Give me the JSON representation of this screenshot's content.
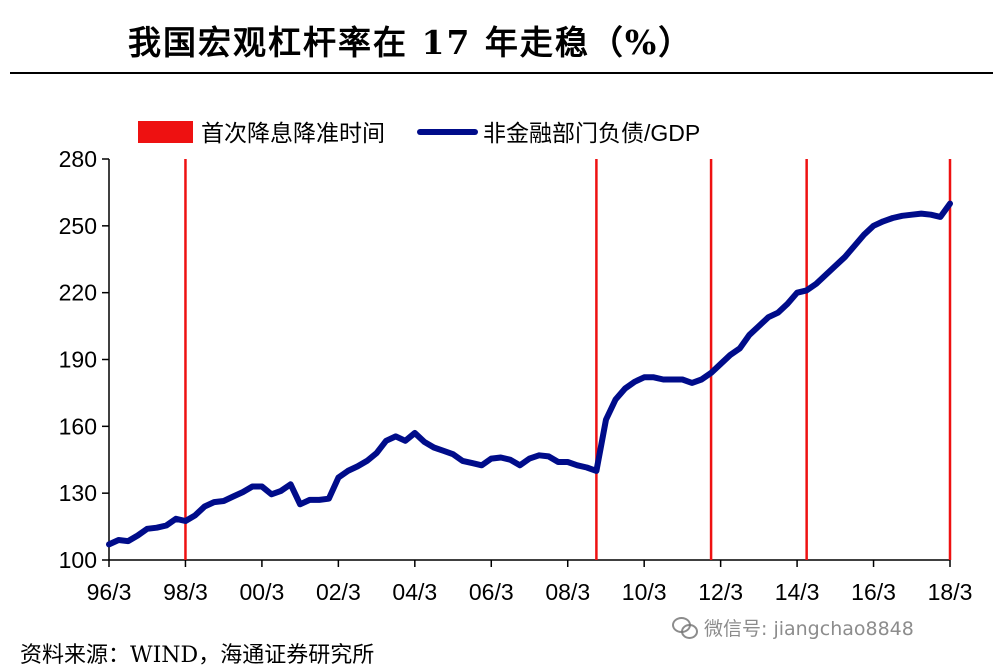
{
  "chart_data": {
    "type": "line",
    "title": "我国宏观杠杆率在 17 年走稳（%）",
    "source": "资料来源：WIND，海通证券研究所",
    "watermark": "微信号: jiangchao8848",
    "ylim": [
      100,
      280
    ],
    "yticks": [
      100,
      130,
      160,
      190,
      220,
      250,
      280
    ],
    "xlim": [
      1996.0,
      2018.0
    ],
    "xticks": [
      {
        "label": "96/3",
        "x": 1996.0
      },
      {
        "label": "98/3",
        "x": 1998.0
      },
      {
        "label": "00/3",
        "x": 2000.0
      },
      {
        "label": "02/3",
        "x": 2002.0
      },
      {
        "label": "04/3",
        "x": 2004.0
      },
      {
        "label": "06/3",
        "x": 2006.0
      },
      {
        "label": "08/3",
        "x": 2008.0
      },
      {
        "label": "10/3",
        "x": 2010.0
      },
      {
        "label": "12/3",
        "x": 2012.0
      },
      {
        "label": "14/3",
        "x": 2014.0
      },
      {
        "label": "16/3",
        "x": 2016.0
      },
      {
        "label": "18/3",
        "x": 2018.0
      }
    ],
    "legend": [
      {
        "name": "首次降息降准时间",
        "color": "#ee1111",
        "kind": "bar"
      },
      {
        "name": "非金融部门负债/GDP",
        "color": "#000c8a",
        "kind": "line"
      }
    ],
    "events": {
      "name": "首次降息降准时间",
      "color": "#ee1111",
      "x": [
        1998.0,
        2008.75,
        2011.75,
        2014.25,
        2018.0
      ]
    },
    "series": [
      {
        "name": "非金融部门负债/GDP",
        "color": "#000c8a",
        "x": [
          1996.0,
          1996.25,
          1996.5,
          1996.75,
          1997.0,
          1997.25,
          1997.5,
          1997.75,
          1998.0,
          1998.25,
          1998.5,
          1998.75,
          1999.0,
          1999.25,
          1999.5,
          1999.75,
          2000.0,
          2000.25,
          2000.5,
          2000.75,
          2001.0,
          2001.25,
          2001.5,
          2001.75,
          2002.0,
          2002.25,
          2002.5,
          2002.75,
          2003.0,
          2003.25,
          2003.5,
          2003.75,
          2004.0,
          2004.25,
          2004.5,
          2004.75,
          2005.0,
          2005.25,
          2005.5,
          2005.75,
          2006.0,
          2006.25,
          2006.5,
          2006.75,
          2007.0,
          2007.25,
          2007.5,
          2007.75,
          2008.0,
          2008.25,
          2008.5,
          2008.75,
          2009.0,
          2009.25,
          2009.5,
          2009.75,
          2010.0,
          2010.25,
          2010.5,
          2010.75,
          2011.0,
          2011.25,
          2011.5,
          2011.75,
          2012.0,
          2012.25,
          2012.5,
          2012.75,
          2013.0,
          2013.25,
          2013.5,
          2013.75,
          2014.0,
          2014.25,
          2014.5,
          2014.75,
          2015.0,
          2015.25,
          2015.5,
          2015.75,
          2016.0,
          2016.25,
          2016.5,
          2016.75,
          2017.0,
          2017.25,
          2017.5,
          2017.75,
          2018.0
        ],
        "values": [
          107,
          109,
          108.5,
          111,
          114,
          114.5,
          115.5,
          118.5,
          117.5,
          120,
          124,
          126,
          126.5,
          128.5,
          130.5,
          133,
          133,
          129.5,
          131,
          134,
          125,
          127,
          127,
          127.5,
          137,
          140,
          142,
          144.5,
          148,
          153.5,
          155.5,
          153.5,
          157,
          153,
          150.5,
          149,
          147.5,
          144.5,
          143.5,
          142.5,
          145.5,
          146,
          145,
          142.5,
          145.5,
          147,
          146.5,
          144,
          144,
          142.5,
          141.5,
          140,
          163,
          172,
          177,
          180,
          182,
          182,
          181,
          181,
          181,
          179.5,
          181,
          184,
          188,
          192,
          195,
          201,
          205,
          209,
          211,
          215,
          220,
          221,
          224,
          228,
          232,
          236,
          241,
          246,
          250,
          252,
          253.5,
          254.5,
          255,
          255.5,
          255,
          254,
          260
        ]
      }
    ]
  }
}
